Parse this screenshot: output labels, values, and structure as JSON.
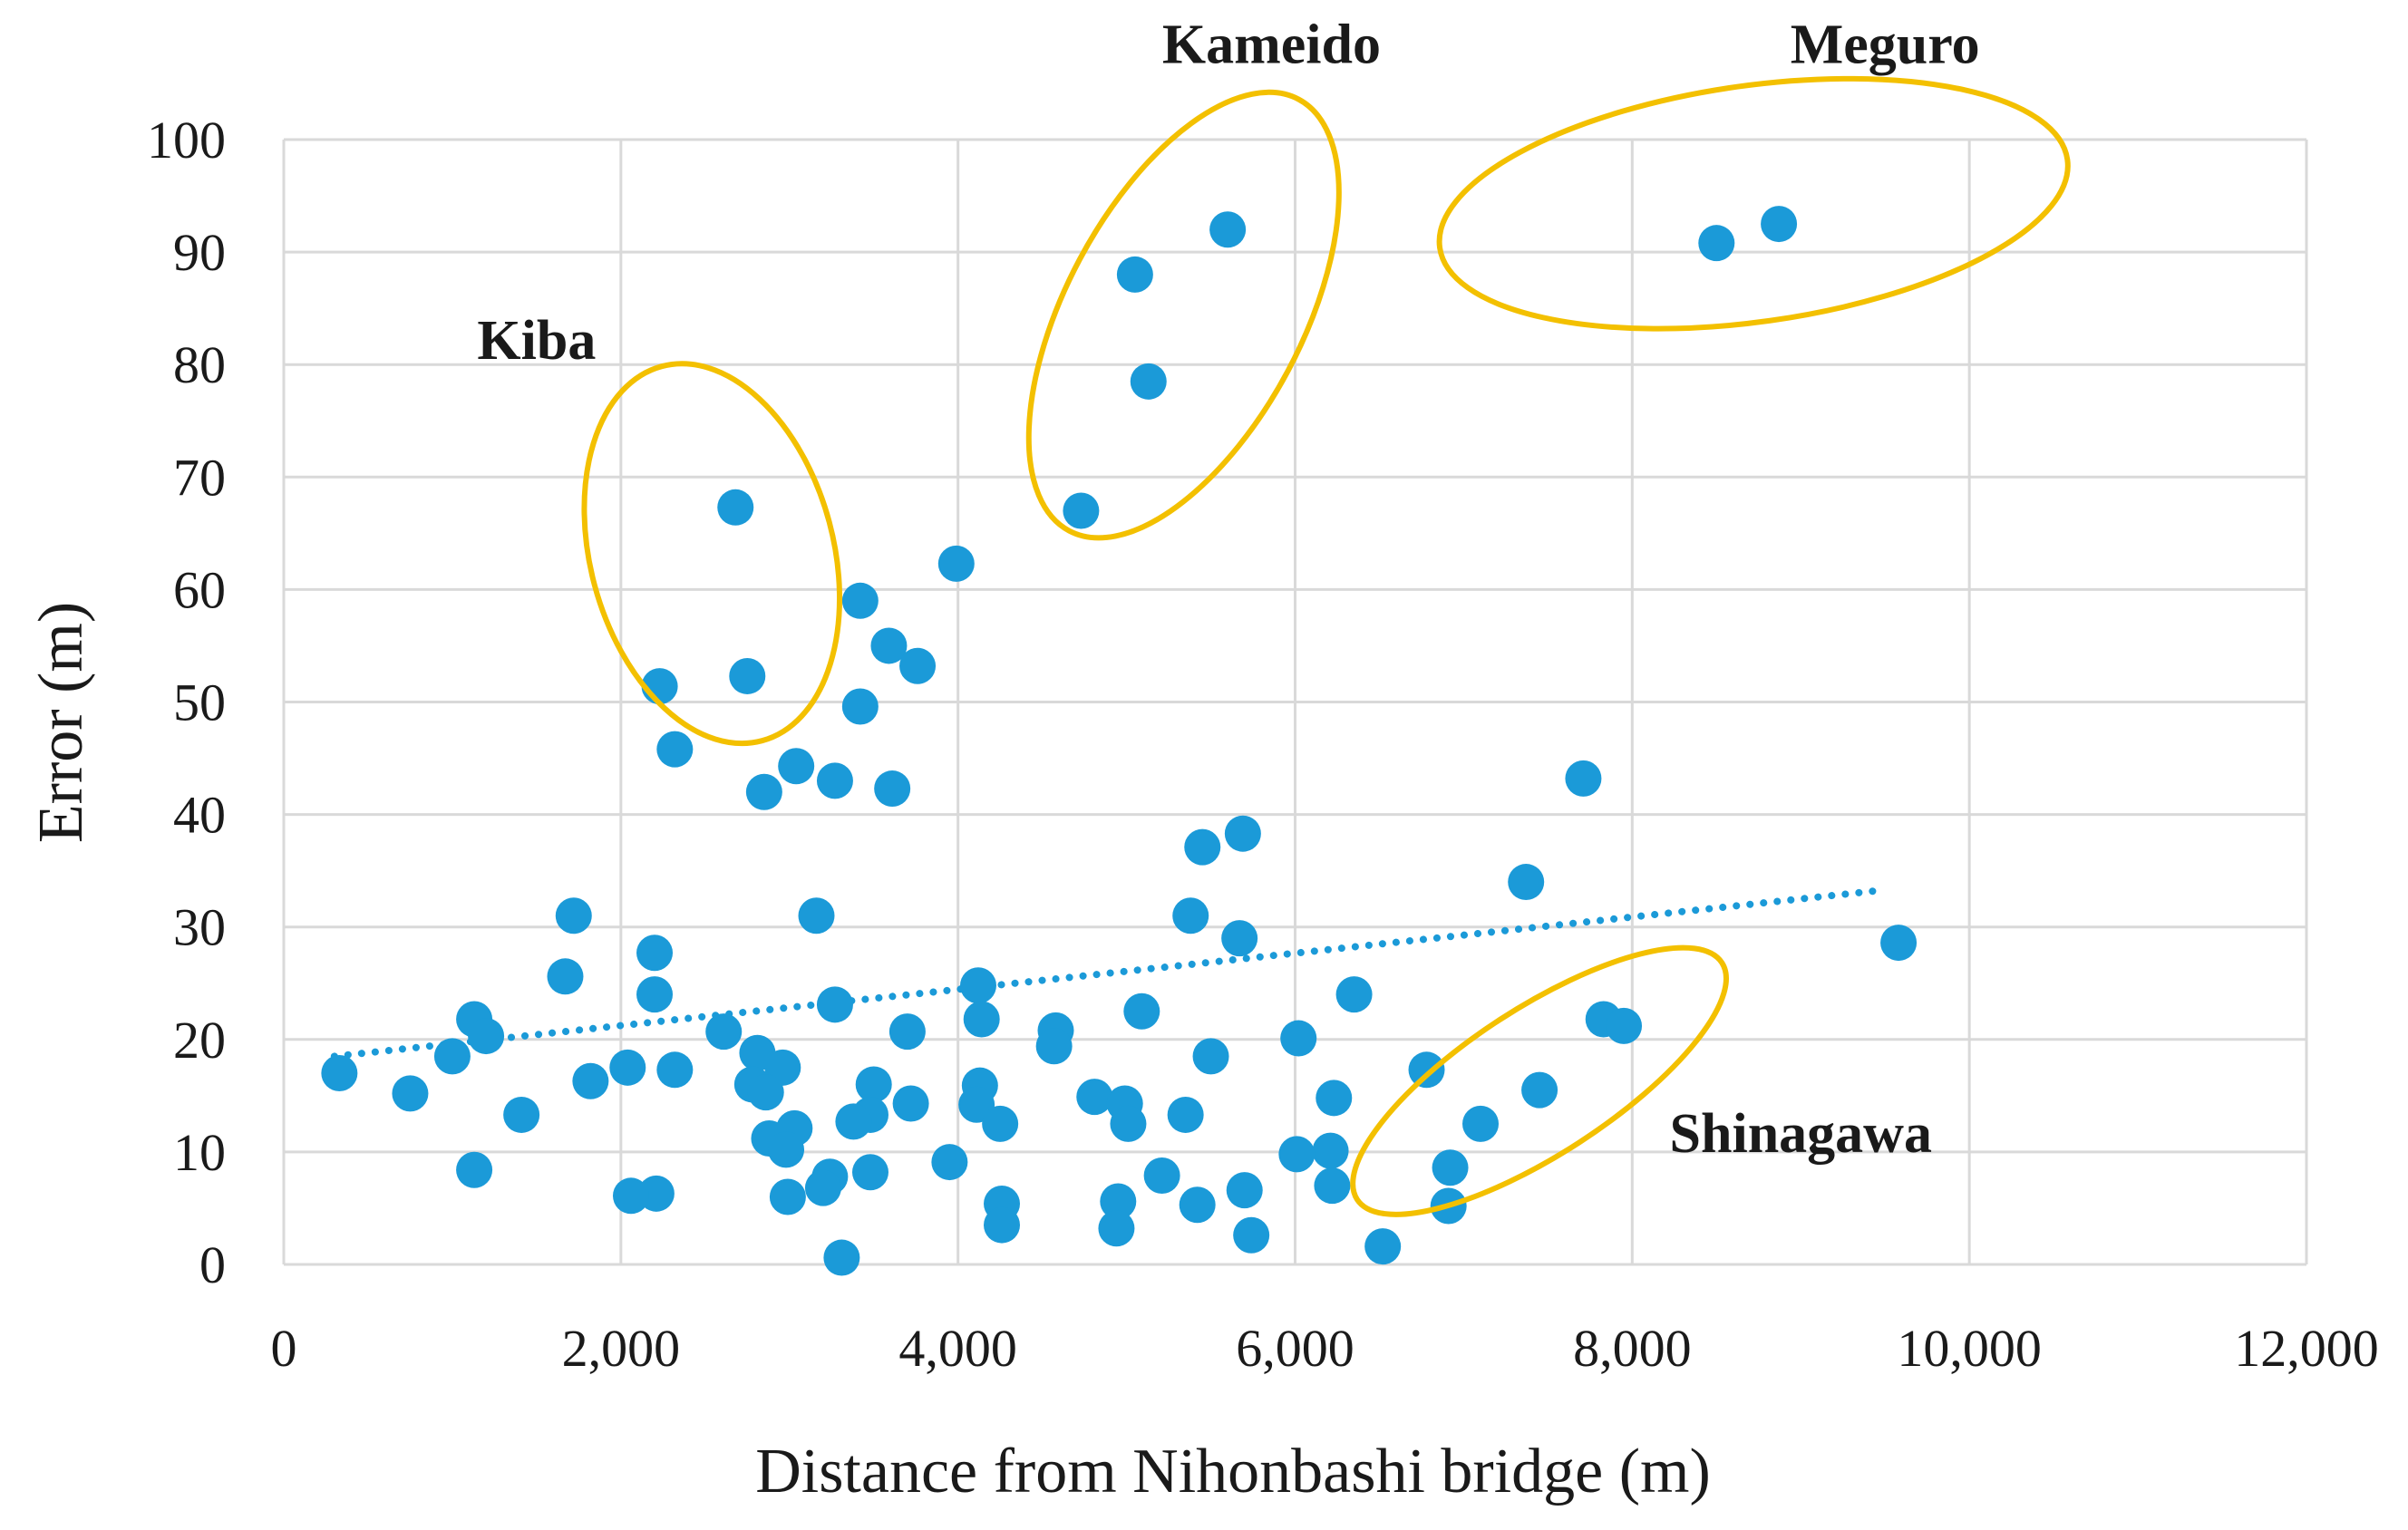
{
  "colors": {
    "point": "#1b9ad8",
    "trend": "#1b9ad8",
    "ellipse": "#f3c000",
    "grid": "#d9d9d9"
  },
  "chart_data": {
    "type": "scatter",
    "title": "",
    "xlabel": "Distance from Nihonbashi bridge (m)",
    "ylabel": "Error (m)",
    "xlim": [
      0,
      12000
    ],
    "ylim": [
      0,
      100
    ],
    "xticks": [
      0,
      2000,
      4000,
      6000,
      8000,
      10000,
      12000
    ],
    "xtick_labels": [
      "0",
      "2,000",
      "4,000",
      "6,000",
      "8,000",
      "10,000",
      "12,000"
    ],
    "yticks": [
      0,
      10,
      20,
      30,
      40,
      50,
      60,
      70,
      80,
      90,
      100
    ],
    "ytick_labels": [
      "0",
      "10",
      "20",
      "30",
      "40",
      "50",
      "60",
      "70",
      "80",
      "90",
      "100"
    ],
    "grid": true,
    "trendline": {
      "style": "dotted",
      "from": [
        300,
        18.5
      ],
      "to": [
        9500,
        33.3
      ]
    },
    "points": [
      {
        "x": 5600,
        "y": 92
      },
      {
        "x": 5050,
        "y": 88
      },
      {
        "x": 5130,
        "y": 78.5
      },
      {
        "x": 8500,
        "y": 90.8
      },
      {
        "x": 8870,
        "y": 92.5
      },
      {
        "x": 2680,
        "y": 67.3
      },
      {
        "x": 4730,
        "y": 67
      },
      {
        "x": 3990,
        "y": 62.3
      },
      {
        "x": 3420,
        "y": 59
      },
      {
        "x": 3590,
        "y": 55
      },
      {
        "x": 3760,
        "y": 53.2
      },
      {
        "x": 2750,
        "y": 52.3
      },
      {
        "x": 2230,
        "y": 51.4
      },
      {
        "x": 3420,
        "y": 49.6
      },
      {
        "x": 2320,
        "y": 45.8
      },
      {
        "x": 3040,
        "y": 44.3
      },
      {
        "x": 3270,
        "y": 43
      },
      {
        "x": 2850,
        "y": 42
      },
      {
        "x": 3610,
        "y": 42.3
      },
      {
        "x": 7710,
        "y": 43.2
      },
      {
        "x": 5690,
        "y": 38.3
      },
      {
        "x": 5450,
        "y": 37.1
      },
      {
        "x": 7370,
        "y": 34
      },
      {
        "x": 1720,
        "y": 31
      },
      {
        "x": 3160,
        "y": 31
      },
      {
        "x": 5380,
        "y": 31
      },
      {
        "x": 5670,
        "y": 29
      },
      {
        "x": 9580,
        "y": 28.6
      },
      {
        "x": 2200,
        "y": 27.7
      },
      {
        "x": 1670,
        "y": 25.6
      },
      {
        "x": 4120,
        "y": 24.8
      },
      {
        "x": 2200,
        "y": 24
      },
      {
        "x": 6350,
        "y": 24
      },
      {
        "x": 3270,
        "y": 23.1
      },
      {
        "x": 5090,
        "y": 22.5
      },
      {
        "x": 1130,
        "y": 21.8
      },
      {
        "x": 4140,
        "y": 21.8
      },
      {
        "x": 7830,
        "y": 21.8
      },
      {
        "x": 7950,
        "y": 21.2
      },
      {
        "x": 3700,
        "y": 20.7
      },
      {
        "x": 4580,
        "y": 20.8
      },
      {
        "x": 2610,
        "y": 20.7
      },
      {
        "x": 1200,
        "y": 20.3
      },
      {
        "x": 6020,
        "y": 20.1
      },
      {
        "x": 4570,
        "y": 19.4
      },
      {
        "x": 2810,
        "y": 18.8
      },
      {
        "x": 1000,
        "y": 18.5
      },
      {
        "x": 5500,
        "y": 18.5
      },
      {
        "x": 2960,
        "y": 17.5
      },
      {
        "x": 2040,
        "y": 17.5
      },
      {
        "x": 330,
        "y": 17
      },
      {
        "x": 2320,
        "y": 17.3
      },
      {
        "x": 6780,
        "y": 17.3
      },
      {
        "x": 1820,
        "y": 16.3
      },
      {
        "x": 2780,
        "y": 16
      },
      {
        "x": 3500,
        "y": 16
      },
      {
        "x": 4130,
        "y": 15.9
      },
      {
        "x": 7450,
        "y": 15.5
      },
      {
        "x": 750,
        "y": 15.2
      },
      {
        "x": 2860,
        "y": 15.3
      },
      {
        "x": 4810,
        "y": 14.9
      },
      {
        "x": 6230,
        "y": 14.8
      },
      {
        "x": 3720,
        "y": 14.3
      },
      {
        "x": 4990,
        "y": 14.3
      },
      {
        "x": 4110,
        "y": 14.2
      },
      {
        "x": 1410,
        "y": 13.3
      },
      {
        "x": 5350,
        "y": 13.3
      },
      {
        "x": 3480,
        "y": 13.3
      },
      {
        "x": 3380,
        "y": 12.7
      },
      {
        "x": 4250,
        "y": 12.5
      },
      {
        "x": 5010,
        "y": 12.5
      },
      {
        "x": 7100,
        "y": 12.5
      },
      {
        "x": 3030,
        "y": 12.1
      },
      {
        "x": 2880,
        "y": 11.2
      },
      {
        "x": 2980,
        "y": 10.2
      },
      {
        "x": 6210,
        "y": 10.1
      },
      {
        "x": 6010,
        "y": 9.8
      },
      {
        "x": 3950,
        "y": 9.1
      },
      {
        "x": 6920,
        "y": 8.6
      },
      {
        "x": 1130,
        "y": 8.4
      },
      {
        "x": 3480,
        "y": 8.2
      },
      {
        "x": 5210,
        "y": 7.9
      },
      {
        "x": 3240,
        "y": 7.8
      },
      {
        "x": 6220,
        "y": 7
      },
      {
        "x": 3200,
        "y": 6.8
      },
      {
        "x": 5700,
        "y": 6.6
      },
      {
        "x": 2210,
        "y": 6.3
      },
      {
        "x": 2060,
        "y": 6.1
      },
      {
        "x": 2990,
        "y": 6
      },
      {
        "x": 4950,
        "y": 5.6
      },
      {
        "x": 4260,
        "y": 5.4
      },
      {
        "x": 5420,
        "y": 5.3
      },
      {
        "x": 6910,
        "y": 5.2
      },
      {
        "x": 4260,
        "y": 3.5
      },
      {
        "x": 4940,
        "y": 3.2
      },
      {
        "x": 5740,
        "y": 2.6
      },
      {
        "x": 6520,
        "y": 1.6
      },
      {
        "x": 3310,
        "y": 0.6
      }
    ],
    "annotations": [
      {
        "label": "Kiba",
        "label_x": 1500,
        "label_y": 80.5,
        "center": [
          2540,
          63.2
        ],
        "radius_x": 1150,
        "radius_y": 10.8,
        "rotation": 75
      },
      {
        "label": "Kameido",
        "label_x": 5860,
        "label_y": 106.8,
        "center": [
          5340,
          84.4
        ],
        "radius_x": 1450,
        "radius_y": 10.5,
        "rotation": -62
      },
      {
        "label": "Meguro",
        "label_x": 9500,
        "label_y": 106.8,
        "center": [
          8720,
          94.3
        ],
        "radius_x": 1880,
        "radius_y": 10.5,
        "rotation": -8
      },
      {
        "label": "Shinagawa",
        "label_x": 9000,
        "label_y": 10,
        "center": [
          7450,
          16.3
        ],
        "radius_x": 1290,
        "radius_y": 6.5,
        "rotation": -33
      }
    ]
  }
}
